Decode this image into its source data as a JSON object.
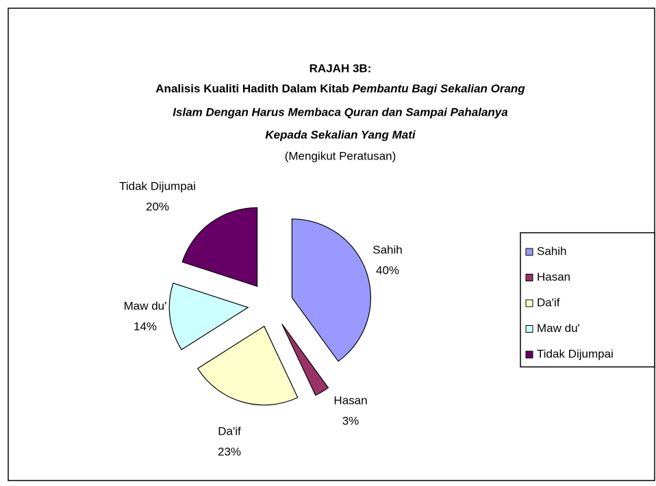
{
  "chart_data": {
    "type": "pie",
    "title": "RAJAH 3B:",
    "subtitle": [
      "Analisis Kualiti Hadith Dalam Kitab ",
      "Pembantu Bagi Sekalian Orang",
      "Islam Dengan Harus Membaca Quran dan Sampai Pahalanya",
      "Kepada Sekalian Yang Mati",
      "(Mengikut Peratusan)"
    ],
    "categories": [
      "Sahih",
      "Hasan",
      "Da'if",
      "Maw du'",
      "Tidak Dijumpai"
    ],
    "values": [
      40,
      3,
      23,
      14,
      20
    ],
    "value_labels": [
      "40%",
      "3%",
      "23%",
      "14%",
      "20%"
    ],
    "colors": [
      "#9999ff",
      "#993366",
      "#ffffcc",
      "#ccffff",
      "#660066"
    ],
    "legend": "right"
  }
}
